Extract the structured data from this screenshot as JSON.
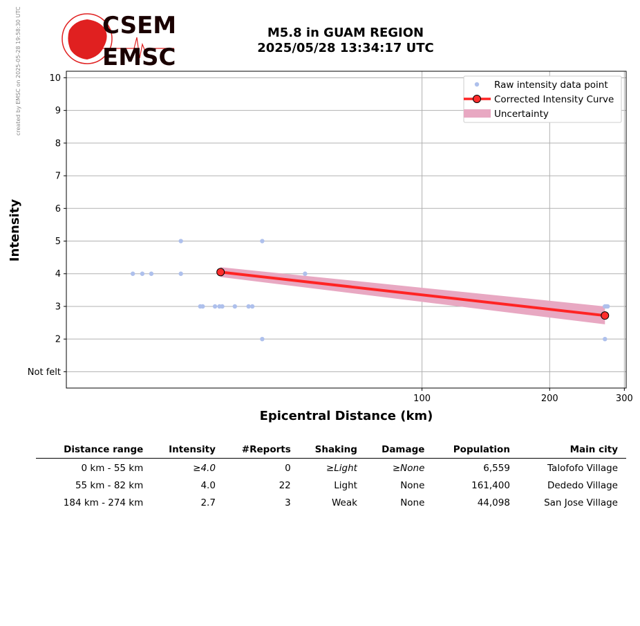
{
  "credit_text": "created by EMSC on 2025-05-28 19:58:30 UTC",
  "logo": {
    "text_top": "CSEM",
    "text_bottom": "EMSC"
  },
  "title": {
    "line1": "M5.8 in GUAM REGION",
    "line2": "2025/05/28 13:34:17 UTC"
  },
  "colors": {
    "raw": "#aec0ec",
    "curve": "#ff2424",
    "uncertainty": "#e8a8c2",
    "marker": "#ff2d2d"
  },
  "chart_data": {
    "type": "scatter",
    "xlabel": "Epicentral Distance (km)",
    "ylabel": "Intensity",
    "x_scale": "log",
    "xlim": [
      14.5,
      303
    ],
    "ylim": [
      0.5,
      10.2
    ],
    "x_ticks": [
      {
        "value": 100,
        "label": "100"
      },
      {
        "value": 200,
        "label": "200"
      },
      {
        "value": 300,
        "label": "300"
      }
    ],
    "y_ticks": [
      {
        "value": 1,
        "label": "Not felt"
      },
      {
        "value": 2,
        "label": "2"
      },
      {
        "value": 3,
        "label": "3"
      },
      {
        "value": 4,
        "label": "4"
      },
      {
        "value": 5,
        "label": "5"
      },
      {
        "value": 6,
        "label": "6"
      },
      {
        "value": 7,
        "label": "7"
      },
      {
        "value": 8,
        "label": "8"
      },
      {
        "value": 9,
        "label": "9"
      },
      {
        "value": 10,
        "label": "10"
      }
    ],
    "grid": true,
    "legend_position": "top-right",
    "raw_points": [
      {
        "x": 20.8,
        "y": 4
      },
      {
        "x": 21.9,
        "y": 4
      },
      {
        "x": 23.0,
        "y": 4
      },
      {
        "x": 27.0,
        "y": 5
      },
      {
        "x": 27.0,
        "y": 4
      },
      {
        "x": 30.0,
        "y": 3
      },
      {
        "x": 30.4,
        "y": 3
      },
      {
        "x": 32.5,
        "y": 3
      },
      {
        "x": 33.3,
        "y": 3
      },
      {
        "x": 33.8,
        "y": 3
      },
      {
        "x": 36.2,
        "y": 3
      },
      {
        "x": 39.0,
        "y": 3
      },
      {
        "x": 39.8,
        "y": 3
      },
      {
        "x": 42.0,
        "y": 5
      },
      {
        "x": 42.0,
        "y": 2
      },
      {
        "x": 53.0,
        "y": 4
      },
      {
        "x": 270.0,
        "y": 3
      },
      {
        "x": 272.0,
        "y": 3
      },
      {
        "x": 274.0,
        "y": 3
      },
      {
        "x": 270.0,
        "y": 2
      }
    ],
    "series": [
      {
        "name": "Corrected Intensity Curve",
        "x": [
          33.5,
          270
        ],
        "y": [
          4.05,
          2.72
        ],
        "lower": [
          3.9,
          2.45
        ],
        "upper": [
          4.2,
          3.0
        ]
      }
    ],
    "legend": [
      {
        "key": "raw",
        "label": "Raw intensity data point"
      },
      {
        "key": "curve",
        "label": "Corrected Intensity Curve"
      },
      {
        "key": "uncertainty",
        "label": "Uncertainty"
      }
    ]
  },
  "table": {
    "headers": [
      "Distance range",
      "Intensity",
      "#Reports",
      "Shaking",
      "Damage",
      "Population",
      "Main city"
    ],
    "rows": [
      {
        "distance": "0 km -   55 km",
        "intensity": "≥4.0",
        "reports": "0",
        "shaking": "≥Light",
        "damage": "≥None",
        "population": "6,559",
        "city": "Talofofo Village"
      },
      {
        "distance": "55 km -   82 km",
        "intensity": "4.0",
        "reports": "22",
        "shaking": "Light",
        "damage": "None",
        "population": "161,400",
        "city": "Dededo Village"
      },
      {
        "distance": "184 km -  274 km",
        "intensity": "2.7",
        "reports": "3",
        "shaking": "Weak",
        "damage": "None",
        "population": "44,098",
        "city": "San Jose Village"
      }
    ]
  }
}
